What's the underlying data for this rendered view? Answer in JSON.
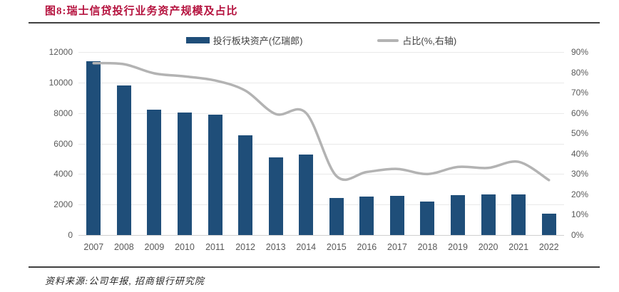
{
  "page": {
    "title": "图8:瑞士信贷投行业务资产规模及占比",
    "source_note": "资料来源:公司年报, 招商银行研究院"
  },
  "legend": {
    "bar_label": "投行板块资产(亿瑞郎)",
    "line_label": "占比(%,右轴)"
  },
  "colors": {
    "title_red": "#b5123e",
    "bar_blue": "#1f4e79",
    "line_gray": "#b3b3b3",
    "rule_dark": "#404040",
    "tick_text": "#595959",
    "gridline": "#e9e9e9",
    "baseline": "#cfcfcf"
  },
  "chart_data": {
    "type": "bar",
    "subtype": "combo-bar-line",
    "title": "图8:瑞士信贷投行业务资产规模及占比",
    "categories": [
      "2007",
      "2008",
      "2009",
      "2010",
      "2011",
      "2012",
      "2013",
      "2014",
      "2015",
      "2016",
      "2017",
      "2018",
      "2019",
      "2020",
      "2021",
      "2022"
    ],
    "series": [
      {
        "name": "投行板块资产(亿瑞郎)",
        "type": "bar",
        "axis": "left",
        "color": "#1f4e79",
        "values": [
          11400,
          9800,
          8200,
          8050,
          7900,
          6550,
          5100,
          5280,
          2450,
          2520,
          2570,
          2200,
          2600,
          2650,
          2680,
          1400
        ]
      },
      {
        "name": "占比(%,右轴)",
        "type": "line",
        "axis": "right",
        "color": "#b3b3b3",
        "values": [
          84.5,
          84,
          79.5,
          78,
          76,
          71,
          59.5,
          60,
          29,
          31,
          32.5,
          30,
          33.5,
          33,
          36,
          27
        ]
      }
    ],
    "left_axis": {
      "min": 0,
      "max": 12000,
      "step": 2000,
      "tick_labels": [
        "0",
        "2000",
        "4000",
        "6000",
        "8000",
        "10000",
        "12000"
      ]
    },
    "right_axis": {
      "min": 0,
      "max": 90,
      "step": 10,
      "tick_labels": [
        "0%",
        "10%",
        "20%",
        "30%",
        "40%",
        "50%",
        "60%",
        "70%",
        "80%",
        "90%"
      ]
    },
    "grid": true,
    "legend_position": "top"
  }
}
